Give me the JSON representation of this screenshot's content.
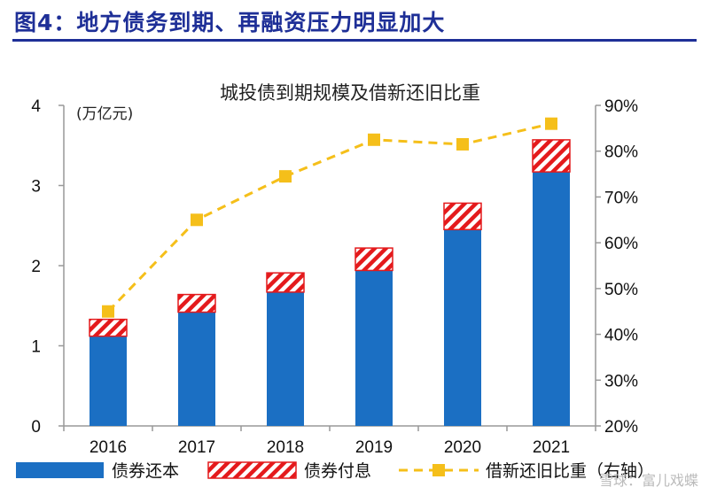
{
  "figure": {
    "title": "图4：地方债务到期、再融资压力明显加大",
    "watermark": "雪球：富儿戏蝶"
  },
  "colors": {
    "title_blue": "#1e2f97",
    "principal_bar": "#1b6fc3",
    "interest_hatch": "#e41a1c",
    "ratio_line": "#f5bf1a"
  },
  "chart_data": {
    "type": "bar",
    "title": "城投债到期规模及借新还旧比重",
    "categories": [
      "2016",
      "2017",
      "2018",
      "2019",
      "2020",
      "2021"
    ],
    "y_unit_label": "(万亿元)",
    "ylim": [
      0,
      4
    ],
    "y_ticks": [
      "0",
      "1",
      "2",
      "3",
      "4"
    ],
    "y2lim": [
      20,
      90
    ],
    "y2_ticks": [
      "20%",
      "30%",
      "40%",
      "50%",
      "60%",
      "70%",
      "80%",
      "90%"
    ],
    "series": [
      {
        "name": "债券还本",
        "type": "bar",
        "stack": "total",
        "axis": "left",
        "values": [
          1.12,
          1.42,
          1.67,
          1.94,
          2.45,
          3.17
        ]
      },
      {
        "name": "债券付息",
        "type": "bar",
        "stack": "total",
        "axis": "left",
        "pattern": "hatch",
        "values": [
          0.21,
          0.22,
          0.24,
          0.28,
          0.33,
          0.4
        ]
      },
      {
        "name": "借新还旧比重（右轴）",
        "type": "line",
        "style": "dashed",
        "marker": "square",
        "axis": "right",
        "values": [
          45,
          65,
          74.5,
          82.5,
          81.5,
          86
        ]
      }
    ],
    "grid": false,
    "legend_position": "bottom"
  }
}
